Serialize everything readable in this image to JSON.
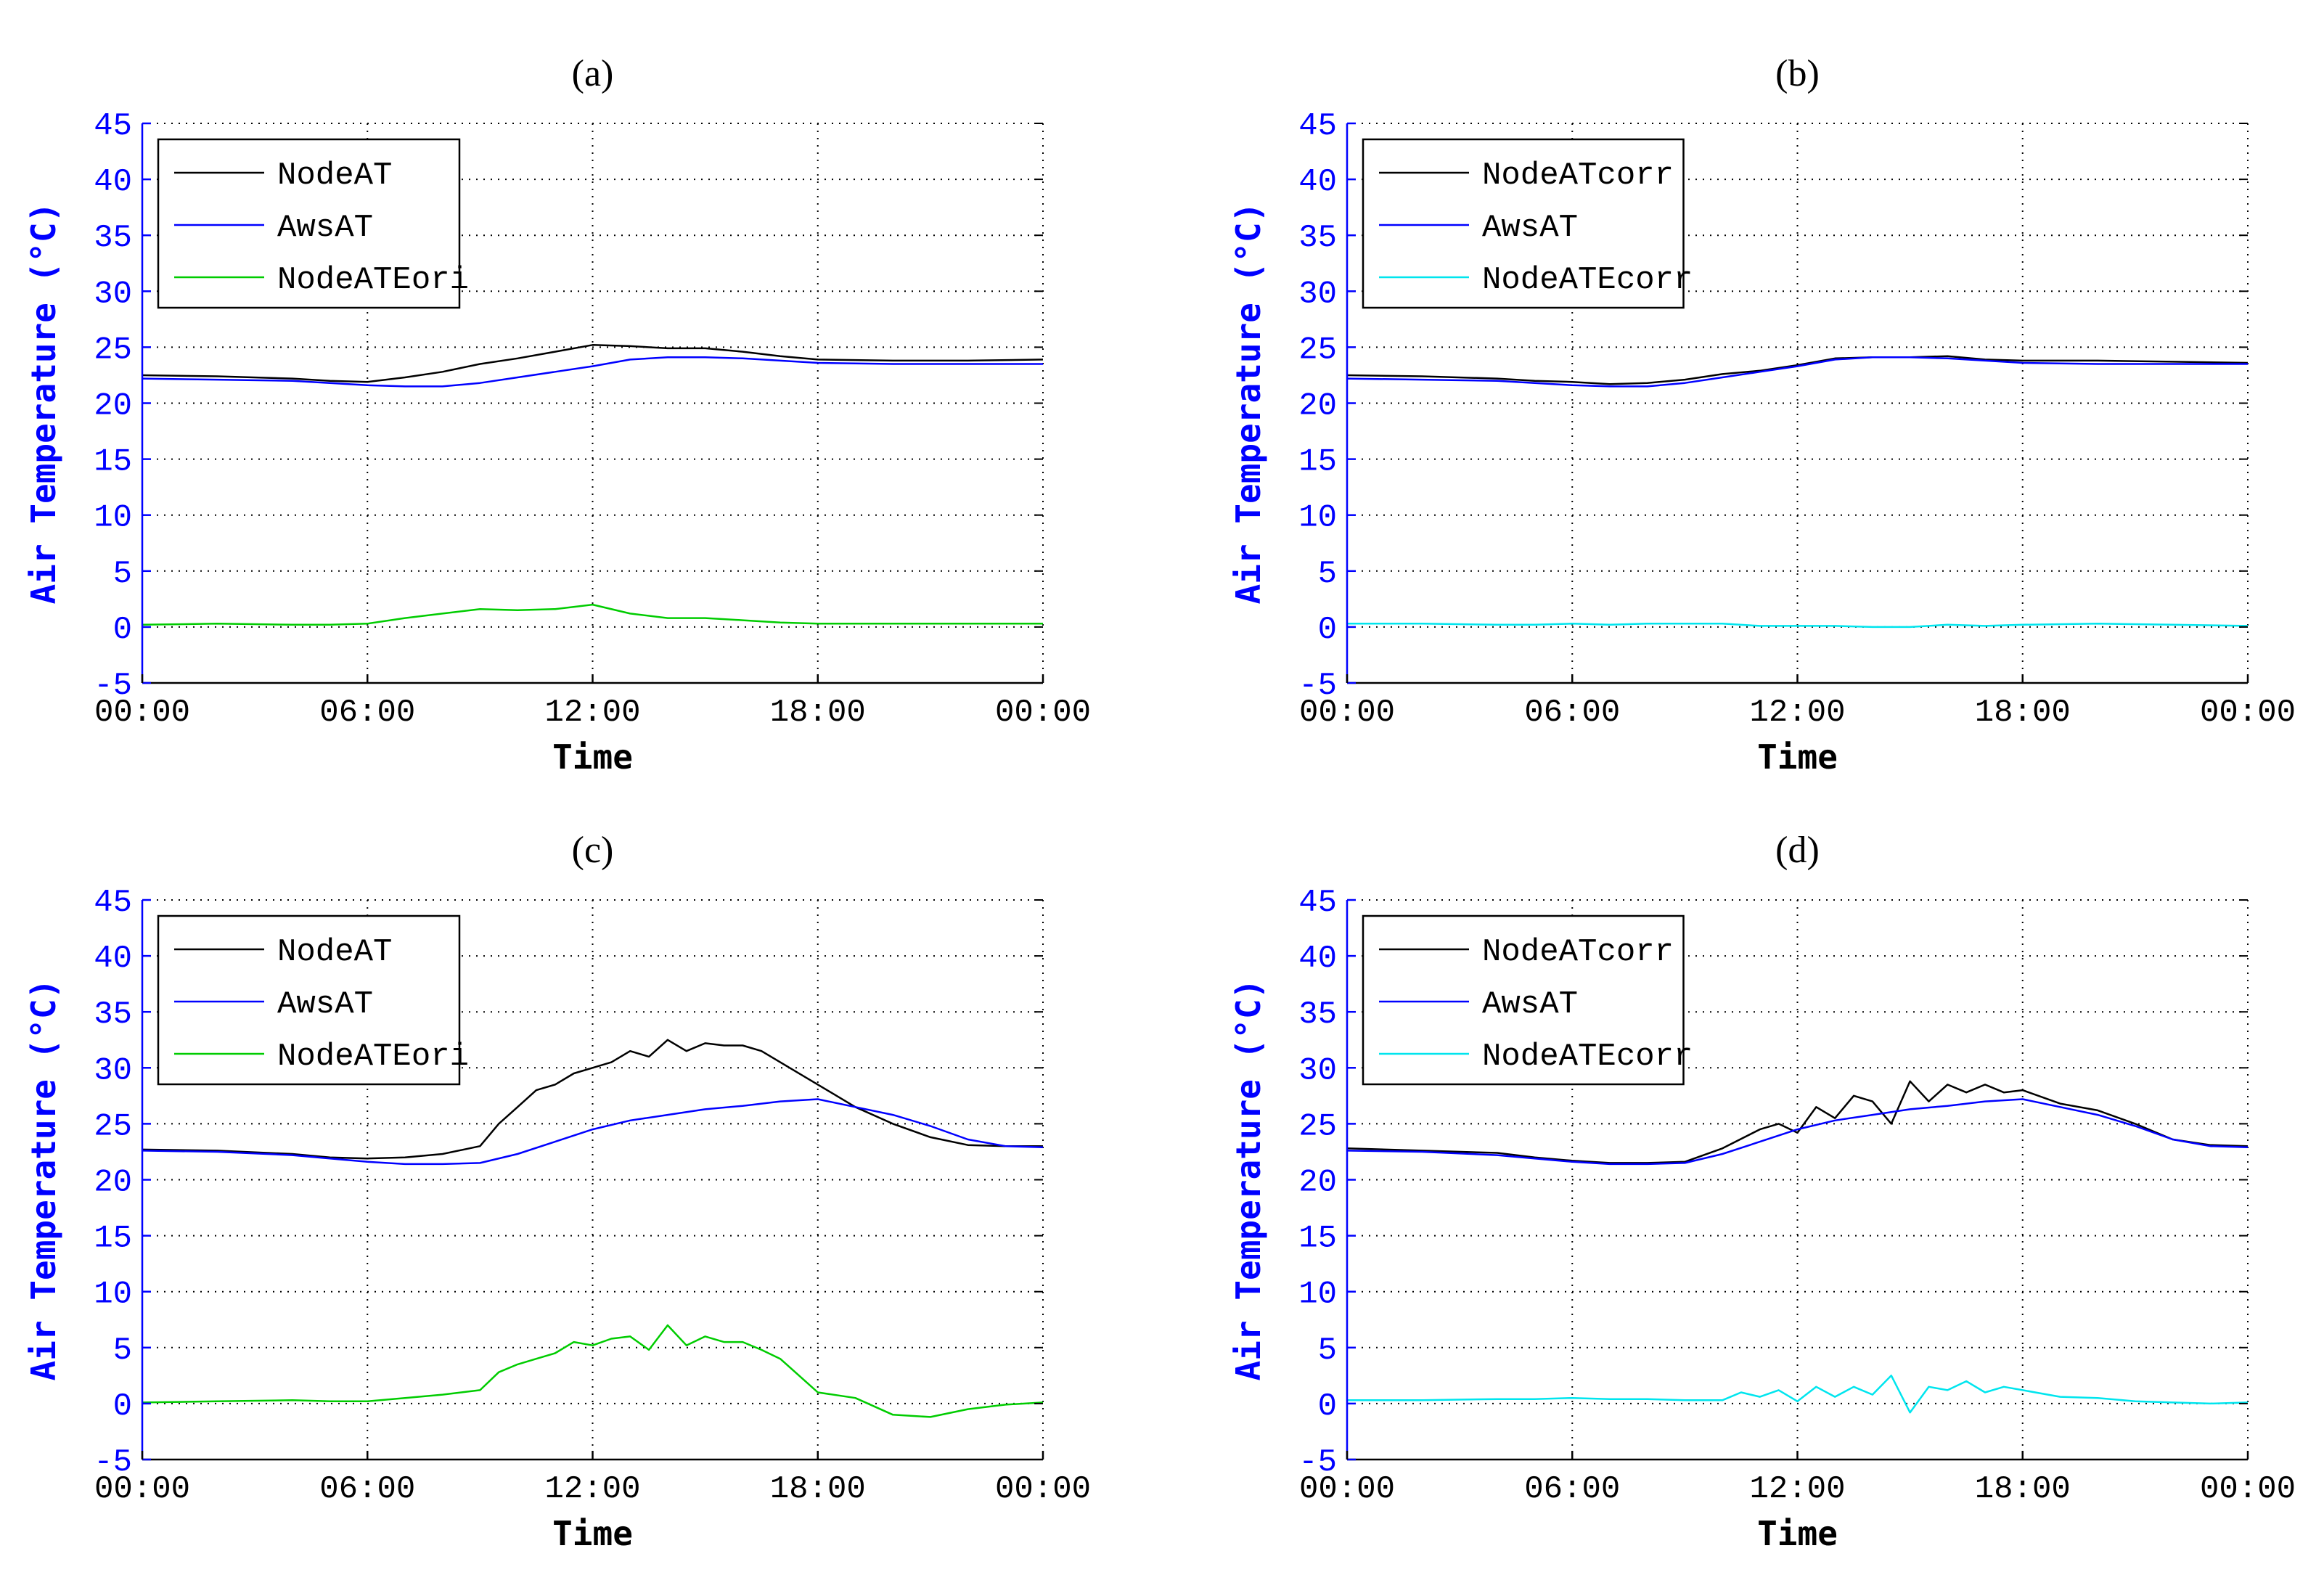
{
  "chart_data": [
    {
      "type": "line",
      "title": "(a)",
      "xlabel": "Time",
      "ylabel": "Air Temperature (°C)",
      "x_ticks": [
        "00:00",
        "06:00",
        "12:00",
        "18:00",
        "00:00"
      ],
      "x_range_hours": [
        0,
        24
      ],
      "ylim": [
        -5,
        45
      ],
      "y_ticks": [
        -5,
        0,
        5,
        10,
        15,
        20,
        25,
        30,
        35,
        40,
        45
      ],
      "grid": true,
      "legend_position": "top-left",
      "series": [
        {
          "name": "NodeAT",
          "color": "#000000",
          "x": [
            0,
            2,
            4,
            5,
            6,
            7,
            8,
            9,
            10,
            11,
            12,
            13,
            14,
            15,
            16,
            17,
            18,
            20,
            22,
            24
          ],
          "y": [
            22.5,
            22.4,
            22.2,
            22.0,
            21.9,
            22.3,
            22.8,
            23.5,
            24.0,
            24.6,
            25.2,
            25.1,
            24.9,
            24.9,
            24.6,
            24.2,
            23.9,
            23.8,
            23.8,
            23.9
          ]
        },
        {
          "name": "AwsAT",
          "color": "#0000ff",
          "x": [
            0,
            2,
            4,
            5,
            6,
            7,
            8,
            9,
            10,
            11,
            12,
            13,
            14,
            15,
            16,
            17,
            18,
            20,
            22,
            24
          ],
          "y": [
            22.2,
            22.1,
            22.0,
            21.8,
            21.6,
            21.5,
            21.5,
            21.8,
            22.3,
            22.8,
            23.3,
            23.9,
            24.1,
            24.1,
            24.0,
            23.8,
            23.6,
            23.5,
            23.5,
            23.5
          ]
        },
        {
          "name": "NodeATEori",
          "color": "#00cc00",
          "x": [
            0,
            2,
            4,
            5,
            6,
            7,
            8,
            9,
            10,
            11,
            12,
            13,
            14,
            15,
            16,
            17,
            18,
            20,
            22,
            24
          ],
          "y": [
            0.2,
            0.3,
            0.2,
            0.2,
            0.3,
            0.8,
            1.2,
            1.6,
            1.5,
            1.6,
            2.0,
            1.2,
            0.8,
            0.8,
            0.6,
            0.4,
            0.3,
            0.3,
            0.3,
            0.3
          ]
        }
      ]
    },
    {
      "type": "line",
      "title": "(b)",
      "xlabel": "Time",
      "ylabel": "Air Temperature (°C)",
      "x_ticks": [
        "00:00",
        "06:00",
        "12:00",
        "18:00",
        "00:00"
      ],
      "x_range_hours": [
        0,
        24
      ],
      "ylim": [
        -5,
        45
      ],
      "y_ticks": [
        -5,
        0,
        5,
        10,
        15,
        20,
        25,
        30,
        35,
        40,
        45
      ],
      "grid": true,
      "legend_position": "top-left",
      "series": [
        {
          "name": "NodeATcorr",
          "color": "#000000",
          "x": [
            0,
            2,
            4,
            5,
            6,
            7,
            8,
            9,
            10,
            11,
            12,
            13,
            14,
            15,
            16,
            17,
            18,
            20,
            22,
            24
          ],
          "y": [
            22.5,
            22.4,
            22.2,
            22.0,
            21.9,
            21.7,
            21.8,
            22.1,
            22.6,
            22.9,
            23.4,
            24.0,
            24.1,
            24.1,
            24.2,
            23.9,
            23.8,
            23.8,
            23.7,
            23.6
          ]
        },
        {
          "name": "AwsAT",
          "color": "#0000ff",
          "x": [
            0,
            2,
            4,
            5,
            6,
            7,
            8,
            9,
            10,
            11,
            12,
            13,
            14,
            15,
            16,
            17,
            18,
            20,
            22,
            24
          ],
          "y": [
            22.2,
            22.1,
            22.0,
            21.8,
            21.6,
            21.5,
            21.5,
            21.8,
            22.3,
            22.8,
            23.3,
            23.9,
            24.1,
            24.1,
            24.0,
            23.8,
            23.6,
            23.5,
            23.5,
            23.5
          ]
        },
        {
          "name": "NodeATEcorr",
          "color": "#00e5ee",
          "x": [
            0,
            2,
            4,
            5,
            6,
            7,
            8,
            9,
            10,
            11,
            12,
            13,
            14,
            15,
            16,
            17,
            18,
            20,
            22,
            24
          ],
          "y": [
            0.3,
            0.3,
            0.2,
            0.2,
            0.3,
            0.2,
            0.3,
            0.3,
            0.3,
            0.1,
            0.1,
            0.1,
            0.0,
            0.0,
            0.2,
            0.1,
            0.2,
            0.3,
            0.2,
            0.1
          ]
        }
      ]
    },
    {
      "type": "line",
      "title": "(c)",
      "xlabel": "Time",
      "ylabel": "Air Temperature (°C)",
      "x_ticks": [
        "00:00",
        "06:00",
        "12:00",
        "18:00",
        "00:00"
      ],
      "x_range_hours": [
        0,
        24
      ],
      "ylim": [
        -5,
        45
      ],
      "y_ticks": [
        -5,
        0,
        5,
        10,
        15,
        20,
        25,
        30,
        35,
        40,
        45
      ],
      "grid": true,
      "legend_position": "top-left",
      "series": [
        {
          "name": "NodeAT",
          "color": "#000000",
          "x": [
            0,
            2,
            4,
            5,
            6,
            7,
            8,
            9,
            9.5,
            10,
            10.5,
            11,
            11.5,
            12,
            12.5,
            13,
            13.5,
            14,
            14.5,
            15,
            15.5,
            16,
            16.5,
            17,
            18,
            19,
            20,
            21,
            22,
            23,
            24
          ],
          "y": [
            22.7,
            22.6,
            22.3,
            22.0,
            21.9,
            22.0,
            22.3,
            23.0,
            25.0,
            26.5,
            28.0,
            28.5,
            29.5,
            30.0,
            30.5,
            31.5,
            31.0,
            32.5,
            31.5,
            32.2,
            32.0,
            32.0,
            31.5,
            30.5,
            28.5,
            26.5,
            25.0,
            23.8,
            23.1,
            23.0,
            23.0
          ]
        },
        {
          "name": "AwsAT",
          "color": "#0000ff",
          "x": [
            0,
            2,
            4,
            5,
            6,
            7,
            8,
            9,
            10,
            11,
            12,
            13,
            14,
            15,
            16,
            17,
            18,
            19,
            20,
            21,
            22,
            23,
            24
          ],
          "y": [
            22.6,
            22.5,
            22.2,
            21.9,
            21.6,
            21.4,
            21.4,
            21.5,
            22.3,
            23.4,
            24.5,
            25.3,
            25.8,
            26.3,
            26.6,
            27.0,
            27.2,
            26.5,
            25.8,
            24.8,
            23.6,
            23.0,
            22.9
          ]
        },
        {
          "name": "NodeATEori",
          "color": "#00cc00",
          "x": [
            0,
            2,
            4,
            5,
            6,
            7,
            8,
            8.5,
            9,
            9.5,
            10,
            10.5,
            11,
            11.5,
            12,
            12.5,
            13,
            13.5,
            14,
            14.5,
            15,
            15.5,
            16,
            16.5,
            17,
            17.5,
            18,
            19,
            20,
            21,
            22,
            23,
            24
          ],
          "y": [
            0.1,
            0.2,
            0.3,
            0.2,
            0.2,
            0.5,
            0.8,
            1.0,
            1.2,
            2.8,
            3.5,
            4.0,
            4.5,
            5.5,
            5.2,
            5.8,
            6.0,
            4.8,
            7.0,
            5.2,
            6.0,
            5.5,
            5.5,
            4.8,
            4.0,
            2.5,
            1.0,
            0.5,
            -1.0,
            -1.2,
            -0.5,
            -0.1,
            0.1
          ]
        }
      ]
    },
    {
      "type": "line",
      "title": "(d)",
      "xlabel": "Time",
      "ylabel": "Air Temperature (°C)",
      "x_ticks": [
        "00:00",
        "06:00",
        "12:00",
        "18:00",
        "00:00"
      ],
      "x_range_hours": [
        0,
        24
      ],
      "ylim": [
        -5,
        45
      ],
      "y_ticks": [
        -5,
        0,
        5,
        10,
        15,
        20,
        25,
        30,
        35,
        40,
        45
      ],
      "grid": true,
      "legend_position": "top-left",
      "series": [
        {
          "name": "NodeATcorr",
          "color": "#000000",
          "x": [
            0,
            2,
            4,
            5,
            6,
            7,
            8,
            9,
            10,
            11,
            11.5,
            12,
            12.5,
            13,
            13.5,
            14,
            14.5,
            15,
            15.5,
            16,
            16.5,
            17,
            17.5,
            18,
            19,
            20,
            21,
            22,
            23,
            24
          ],
          "y": [
            22.8,
            22.6,
            22.4,
            22.0,
            21.7,
            21.5,
            21.5,
            21.6,
            22.8,
            24.5,
            25.0,
            24.2,
            26.5,
            25.5,
            27.5,
            27.0,
            25.0,
            28.8,
            27.0,
            28.5,
            27.8,
            28.5,
            27.8,
            28.0,
            26.8,
            26.2,
            25.0,
            23.6,
            23.1,
            23.0
          ]
        },
        {
          "name": "AwsAT",
          "color": "#0000ff",
          "x": [
            0,
            2,
            4,
            5,
            6,
            7,
            8,
            9,
            10,
            11,
            12,
            13,
            14,
            15,
            16,
            17,
            18,
            19,
            20,
            21,
            22,
            23,
            24
          ],
          "y": [
            22.6,
            22.5,
            22.2,
            21.9,
            21.6,
            21.4,
            21.4,
            21.5,
            22.3,
            23.4,
            24.5,
            25.3,
            25.8,
            26.3,
            26.6,
            27.0,
            27.2,
            26.5,
            25.8,
            24.8,
            23.6,
            23.0,
            22.9
          ]
        },
        {
          "name": "NodeATEcorr",
          "color": "#00e5ee",
          "x": [
            0,
            2,
            4,
            5,
            6,
            7,
            8,
            9,
            10,
            10.5,
            11,
            11.5,
            12,
            12.5,
            13,
            13.5,
            14,
            14.5,
            15,
            15.5,
            16,
            16.5,
            17,
            17.5,
            18,
            19,
            20,
            21,
            22,
            23,
            24
          ],
          "y": [
            0.3,
            0.3,
            0.4,
            0.4,
            0.5,
            0.4,
            0.4,
            0.3,
            0.3,
            1.0,
            0.6,
            1.2,
            0.2,
            1.5,
            0.6,
            1.5,
            0.8,
            2.5,
            -0.8,
            1.5,
            1.2,
            2.0,
            1.0,
            1.5,
            1.2,
            0.6,
            0.5,
            0.2,
            0.1,
            0.0,
            0.1
          ]
        }
      ]
    }
  ]
}
